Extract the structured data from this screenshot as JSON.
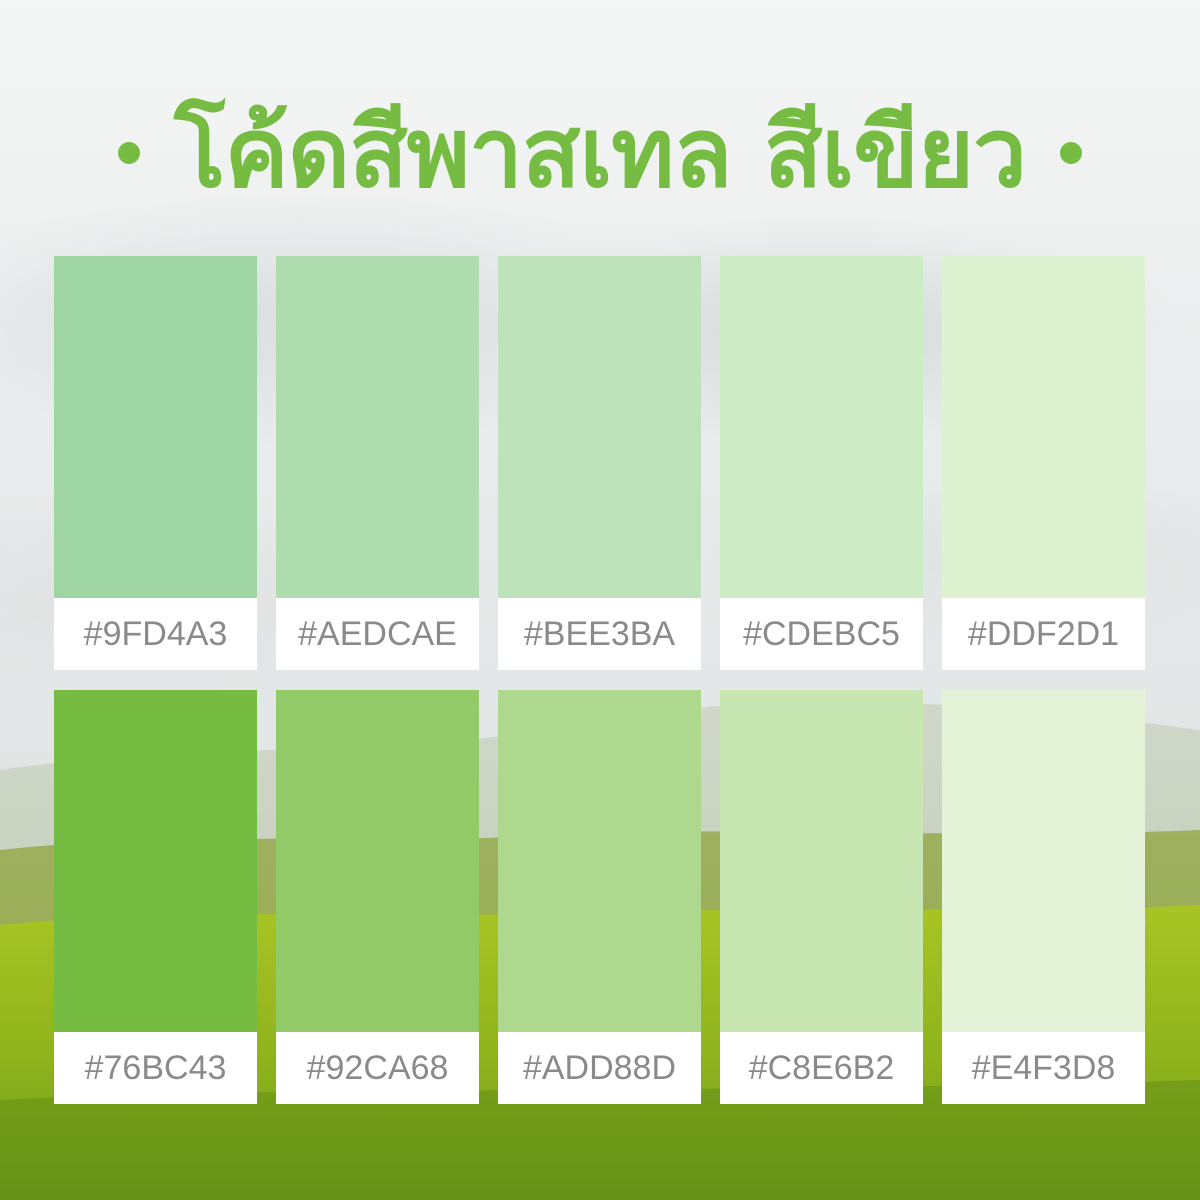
{
  "title": "โค้ดสีพาสเทล สีเขียว",
  "accent_color": "#76BC43",
  "swatches": [
    {
      "code": "#9FD4A3",
      "color": "#9FD4A3"
    },
    {
      "code": "#AEDCAE",
      "color": "#AEDCAE"
    },
    {
      "code": "#BEE3BA",
      "color": "#BEE3BA"
    },
    {
      "code": "#CDEBC5",
      "color": "#CDEBC5"
    },
    {
      "code": "#DDF2D1",
      "color": "#DDF2D1"
    },
    {
      "code": "#76BC43",
      "color": "#76BC43"
    },
    {
      "code": "#92CA68",
      "color": "#92CA68"
    },
    {
      "code": "#ADD88D",
      "color": "#ADD88D"
    },
    {
      "code": "#C8E6B2",
      "color": "#C8E6B2"
    },
    {
      "code": "#E4F3D8",
      "color": "#E4F3D8"
    }
  ]
}
